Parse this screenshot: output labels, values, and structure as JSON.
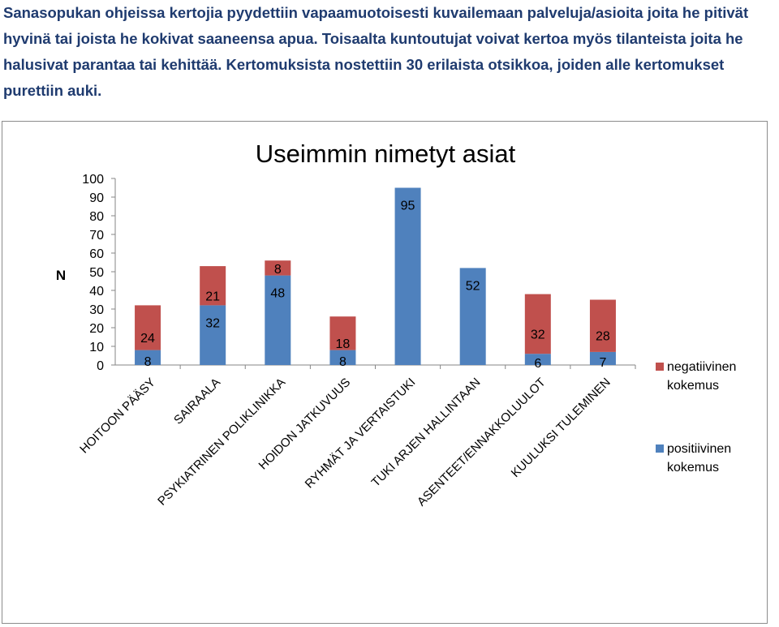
{
  "intro_text": "Sanasopukan ohjeissa kertojia pyydettiin vapaamuotoisesti kuvailemaan palveluja/asioita joita he pitivät hyvinä tai joista he kokivat saaneensa apua. Toisaalta kuntoutujat voivat kertoa myös tilanteista joita he halusivat parantaa tai kehittää. Kertomuksista nostettiin 30 erilaista otsikkoa, joiden alle kertomukset purettiin auki.",
  "chart_data": {
    "type": "bar",
    "stacked": true,
    "title": "Useimmin nimetyt asiat",
    "ylabel": "N",
    "xlabel": "",
    "ylim": [
      0,
      100
    ],
    "yticks": [
      0,
      10,
      20,
      30,
      40,
      50,
      60,
      70,
      80,
      90,
      100
    ],
    "grid": false,
    "legend_position": "right",
    "categories": [
      "HOITOON PÄÄSY",
      "SAIRAALA",
      "PSYKIATRINEN POLIKLINIKKA",
      "HOIDON JATKUVUUS",
      "RYHMÄT JA VERTAISTUKI",
      "TUKI ARJEN HALLINTAAN",
      "ASENTEET/ENNAKKOLUULOT",
      "KUULUKSI TULEMINEN"
    ],
    "series": [
      {
        "name": "positiivinen kokemus",
        "color": "#4f81bd",
        "values": [
          8,
          32,
          48,
          8,
          95,
          52,
          6,
          7
        ]
      },
      {
        "name": "negatiivinen kokemus",
        "color": "#c0504d",
        "values": [
          24,
          21,
          8,
          18,
          0,
          0,
          32,
          28
        ]
      }
    ],
    "legend_order": [
      "negatiivinen kokemus",
      "positiivinen kokemus"
    ]
  }
}
